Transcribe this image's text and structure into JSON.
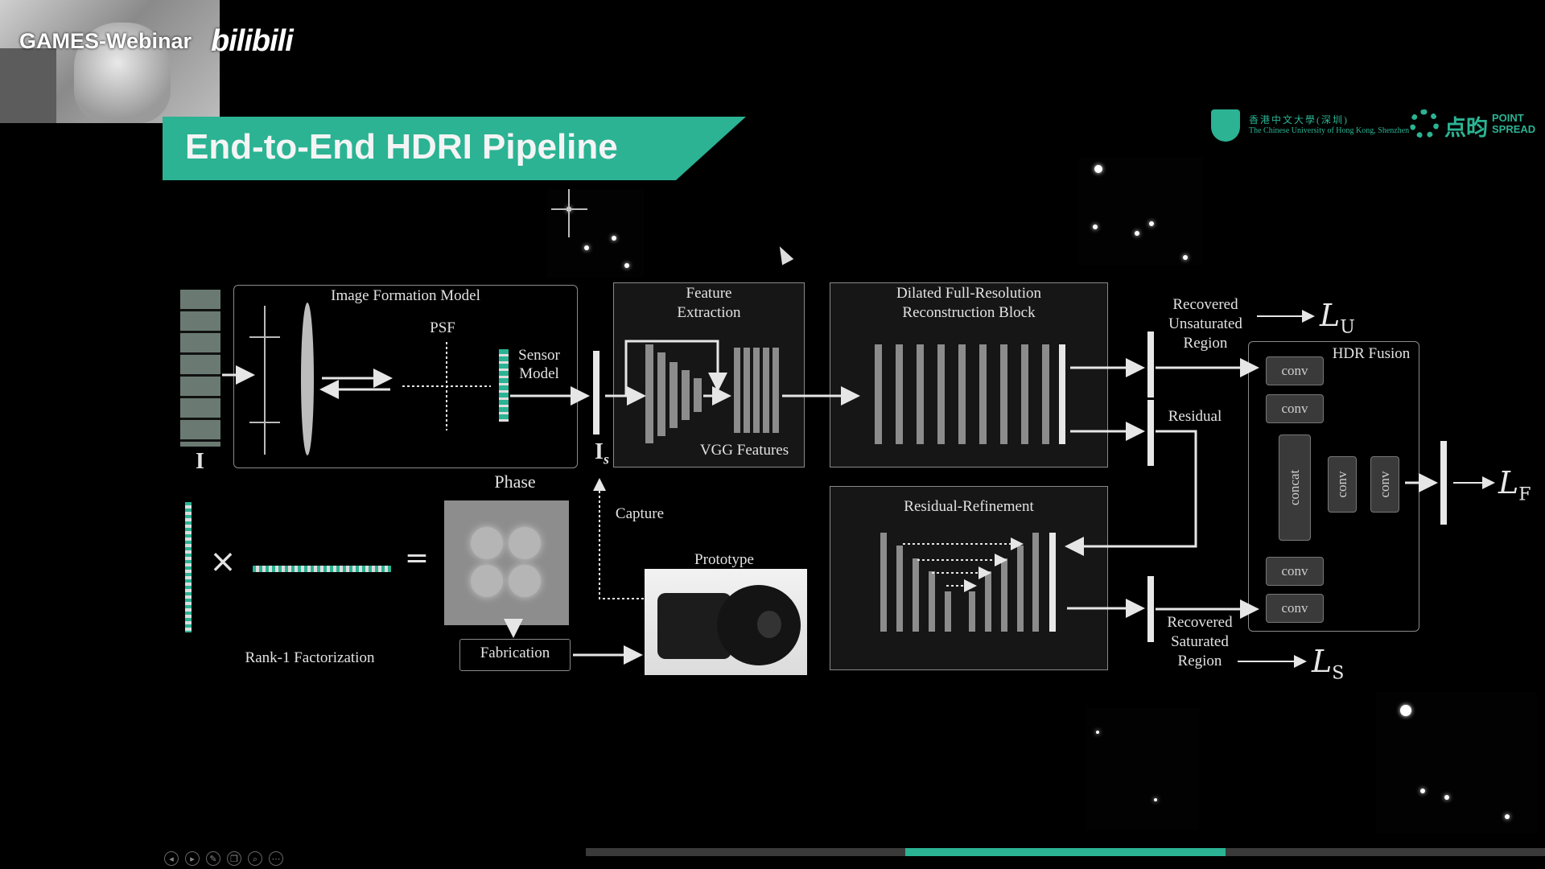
{
  "header": {
    "watermark": "GAMES-Webinar",
    "platform_logo": "bilibili",
    "webcam": "presenter-webcam"
  },
  "slide": {
    "title": "End-to-End HDRI Pipeline",
    "logos": {
      "cuhk_cn": "香港中文大學(深圳)",
      "cuhk_en": "The Chinese University of Hong Kong, Shenzhen",
      "pointspread_cn": "点昀",
      "pointspread_en_1": "POINT",
      "pointspread_en_2": "SPREAD"
    },
    "accent_color": "#2bb393",
    "diagram": {
      "input_label": "I",
      "image_formation": "Image Formation Model",
      "psf": "PSF",
      "sensor_model_1": "Sensor",
      "sensor_model_2": "Model",
      "is_label": "I",
      "is_sub": "s",
      "feature_1": "Feature",
      "feature_2": "Extraction",
      "vgg": "VGG Features",
      "dilated_1": "Dilated Full-Resolution",
      "dilated_2": "Reconstruction Block",
      "residual_refinement": "Residual-Refinement",
      "recovered_unsat_1": "Recovered",
      "recovered_unsat_2": "Unsaturated",
      "recovered_unsat_3": "Region",
      "residual": "Residual",
      "recovered_sat_1": "Recovered",
      "recovered_sat_2": "Saturated",
      "recovered_sat_3": "Region",
      "hdr_fusion": "HDR Fusion",
      "conv": "conv",
      "concat": "concat",
      "loss_u": "L",
      "loss_u_sub": "U",
      "loss_f": "L",
      "loss_f_sub": "F",
      "loss_s": "L",
      "loss_s_sub": "S",
      "phase": "Phase",
      "times": "×",
      "equals": "=",
      "rank1": "Rank-1 Factorization",
      "fabrication": "Fabrication",
      "capture": "Capture",
      "prototype": "Prototype"
    }
  },
  "toolbar": {
    "icons": [
      "prev-icon",
      "next-icon",
      "pen-icon",
      "copy-icon",
      "zoom-icon",
      "more-icon"
    ],
    "glyphs": [
      "◂",
      "▸",
      "✎",
      "❐",
      "⌕",
      "⋯"
    ],
    "progress": 0.333
  }
}
